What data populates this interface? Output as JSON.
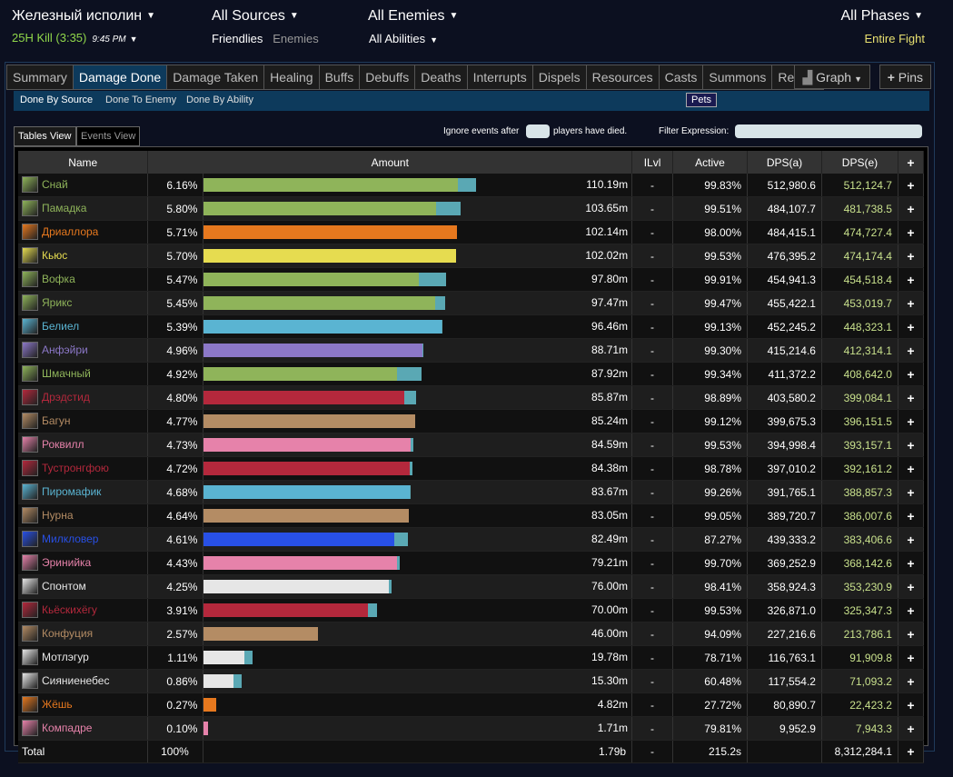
{
  "header": {
    "boss": "Железный исполин",
    "kill_text": "25H Kill (3:35)",
    "kill_time": "9:45 PM",
    "sources": "All Sources",
    "friendlies": "Friendlies",
    "enemies_toggle": "Enemies",
    "enemies": "All Enemies",
    "abilities": "All Abilities",
    "phases": "All Phases",
    "fight": "Entire Fight"
  },
  "tabs": [
    "Summary",
    "Damage Done",
    "Damage Taken",
    "Healing",
    "Buffs",
    "Debuffs",
    "Deaths",
    "Interrupts",
    "Dispels",
    "Resources",
    "Casts",
    "Summons",
    "Replay"
  ],
  "active_tab": "Damage Done",
  "graph_label": "Graph",
  "pins_label": "Pins",
  "subnav": {
    "by_source": "Done By Source",
    "to_enemy": "Done To Enemy",
    "by_ability": "Done By Ability",
    "pets": "Pets"
  },
  "views": {
    "tables": "Tables View",
    "events": "Events View"
  },
  "controls": {
    "ignore_before": "Ignore events after",
    "ignore_after": "players have died.",
    "filter": "Filter Expression:"
  },
  "columns": {
    "name": "Name",
    "amount": "Amount",
    "ilvl": "ILvl",
    "active": "Active",
    "dpsa": "DPS(a)",
    "dpse": "DPS(e)",
    "add": "+"
  },
  "colors": {
    "hunter": "#8fb45a",
    "mage": "#5ab4d2",
    "warrior": "#b48c64",
    "druid": "#e6781e",
    "rogue": "#e6dc50",
    "warlock": "#8c78c8",
    "dk": "#b4283c",
    "paladin": "#e682aa",
    "shaman": "#2850e6",
    "priest": "#e6e6e6",
    "monk": "#e6781e",
    "teal": "#5aa8b4",
    "dpse_text": "#c8e08c"
  },
  "rows": [
    {
      "name": "Снай",
      "cls": "hunter",
      "icon": "hunter-icon",
      "pct": "6.16%",
      "amount": "110.19m",
      "ilvl": "-",
      "active": "99.83%",
      "dpsa": "512,980.6",
      "dpse": "512,124.7",
      "share": 6.16,
      "pet": 0.41
    },
    {
      "name": "Памадка",
      "cls": "hunter",
      "icon": "hunter-icon",
      "pct": "5.80%",
      "amount": "103.65m",
      "ilvl": "-",
      "active": "99.51%",
      "dpsa": "484,107.7",
      "dpse": "481,738.5",
      "share": 5.8,
      "pet": 0.55
    },
    {
      "name": "Дриаллора",
      "cls": "druid",
      "icon": "druid-icon",
      "pct": "5.71%",
      "amount": "102.14m",
      "ilvl": "-",
      "active": "98.00%",
      "dpsa": "484,415.1",
      "dpse": "474,727.4",
      "share": 5.71,
      "pet": 0
    },
    {
      "name": "Кьюс",
      "cls": "rogue",
      "icon": "rogue-icon",
      "pct": "5.70%",
      "amount": "102.02m",
      "ilvl": "-",
      "active": "99.53%",
      "dpsa": "476,395.2",
      "dpse": "474,174.4",
      "share": 5.7,
      "pet": 0
    },
    {
      "name": "Вофка",
      "cls": "hunter",
      "icon": "hunter-icon",
      "pct": "5.47%",
      "amount": "97.80m",
      "ilvl": "-",
      "active": "99.91%",
      "dpsa": "454,941.3",
      "dpse": "454,518.4",
      "share": 5.47,
      "pet": 0.61
    },
    {
      "name": "Ярикс",
      "cls": "hunter",
      "icon": "hunter-icon",
      "pct": "5.45%",
      "amount": "97.47m",
      "ilvl": "-",
      "active": "99.47%",
      "dpsa": "455,422.1",
      "dpse": "453,019.7",
      "share": 5.45,
      "pet": 0.22
    },
    {
      "name": "Белиел",
      "cls": "mage",
      "icon": "frost-mage-icon",
      "pct": "5.39%",
      "amount": "96.46m",
      "ilvl": "-",
      "active": "99.13%",
      "dpsa": "452,245.2",
      "dpse": "448,323.1",
      "share": 5.39,
      "pet": 0.02
    },
    {
      "name": "Анфэйри",
      "cls": "warlock",
      "icon": "warlock-icon",
      "pct": "4.96%",
      "amount": "88.71m",
      "ilvl": "-",
      "active": "99.30%",
      "dpsa": "415,214.6",
      "dpse": "412,314.1",
      "share": 4.96,
      "pet": 0.02
    },
    {
      "name": "Шмачный",
      "cls": "hunter",
      "icon": "hunter-icon",
      "pct": "4.92%",
      "amount": "87.92m",
      "ilvl": "-",
      "active": "99.34%",
      "dpsa": "411,372.2",
      "dpse": "408,642.0",
      "share": 4.92,
      "pet": 0.56
    },
    {
      "name": "Дрэдстид",
      "cls": "dk",
      "icon": "death-knight-icon",
      "pct": "4.80%",
      "amount": "85.87m",
      "ilvl": "-",
      "active": "98.89%",
      "dpsa": "403,580.2",
      "dpse": "399,084.1",
      "share": 4.8,
      "pet": 0.28
    },
    {
      "name": "Багун",
      "cls": "warrior",
      "icon": "warrior-icon",
      "pct": "4.77%",
      "amount": "85.24m",
      "ilvl": "-",
      "active": "99.12%",
      "dpsa": "399,675.3",
      "dpse": "396,151.5",
      "share": 4.77,
      "pet": 0
    },
    {
      "name": "Роквилл",
      "cls": "paladin",
      "icon": "paladin-icon",
      "pct": "4.73%",
      "amount": "84.59m",
      "ilvl": "-",
      "active": "99.53%",
      "dpsa": "394,998.4",
      "dpse": "393,157.1",
      "share": 4.73,
      "pet": 0.06
    },
    {
      "name": "Тустронгфою",
      "cls": "dk",
      "icon": "death-knight-icon",
      "pct": "4.72%",
      "amount": "84.38m",
      "ilvl": "-",
      "active": "98.78%",
      "dpsa": "397,010.2",
      "dpse": "392,161.2",
      "share": 4.72,
      "pet": 0.07
    },
    {
      "name": "Пиромафик",
      "cls": "mage",
      "icon": "fire-mage-icon",
      "pct": "4.68%",
      "amount": "83.67m",
      "ilvl": "-",
      "active": "99.26%",
      "dpsa": "391,765.1",
      "dpse": "388,857.3",
      "share": 4.68,
      "pet": 0.02
    },
    {
      "name": "Нурна",
      "cls": "warrior",
      "icon": "warrior-icon",
      "pct": "4.64%",
      "amount": "83.05m",
      "ilvl": "-",
      "active": "99.05%",
      "dpsa": "389,720.7",
      "dpse": "386,007.6",
      "share": 4.64,
      "pet": 0
    },
    {
      "name": "Милкловер",
      "cls": "shaman",
      "icon": "shaman-icon",
      "pct": "4.61%",
      "amount": "82.49m",
      "ilvl": "-",
      "active": "87.27%",
      "dpsa": "439,333.2",
      "dpse": "383,406.6",
      "share": 4.61,
      "pet": 0.3
    },
    {
      "name": "Эринийка",
      "cls": "paladin",
      "icon": "paladin-icon",
      "pct": "4.43%",
      "amount": "79.21m",
      "ilvl": "-",
      "active": "99.70%",
      "dpsa": "369,252.9",
      "dpse": "368,142.6",
      "share": 4.43,
      "pet": 0.07
    },
    {
      "name": "Спонтом",
      "cls": "priest",
      "icon": "priest-icon",
      "pct": "4.25%",
      "amount": "76.00m",
      "ilvl": "-",
      "active": "98.41%",
      "dpsa": "358,924.3",
      "dpse": "353,230.9",
      "share": 4.25,
      "pet": 0.06
    },
    {
      "name": "Кьёскихёгу",
      "cls": "dk",
      "icon": "death-knight-icon",
      "pct": "3.91%",
      "amount": "70.00m",
      "ilvl": "-",
      "active": "99.53%",
      "dpsa": "326,871.0",
      "dpse": "325,347.3",
      "share": 3.91,
      "pet": 0.21
    },
    {
      "name": "Конфуция",
      "cls": "warrior",
      "icon": "warrior-icon",
      "pct": "2.57%",
      "amount": "46.00m",
      "ilvl": "-",
      "active": "94.09%",
      "dpsa": "227,216.6",
      "dpse": "213,786.1",
      "share": 2.57,
      "pet": 0
    },
    {
      "name": "Мотлэгур",
      "cls": "priest",
      "icon": "priest-icon",
      "pct": "1.11%",
      "amount": "19.78m",
      "ilvl": "-",
      "active": "78.71%",
      "dpsa": "116,763.1",
      "dpse": "91,909.8",
      "share": 1.11,
      "pet": 0.19
    },
    {
      "name": "Сияниенебес",
      "cls": "priest",
      "icon": "holy-priest-icon",
      "pct": "0.86%",
      "amount": "15.30m",
      "ilvl": "-",
      "active": "60.48%",
      "dpsa": "117,554.2",
      "dpse": "71,093.2",
      "share": 0.86,
      "pet": 0.2
    },
    {
      "name": "Жёшь",
      "cls": "monk",
      "icon": "druid-resto-icon",
      "pct": "0.27%",
      "amount": "4.82m",
      "ilvl": "-",
      "active": "27.72%",
      "dpsa": "80,890.7",
      "dpse": "22,423.2",
      "share": 0.27,
      "pet": 0
    },
    {
      "name": "Компадре",
      "cls": "paladin",
      "icon": "holy-paladin-icon",
      "pct": "0.10%",
      "amount": "1.71m",
      "ilvl": "-",
      "active": "79.81%",
      "dpsa": "9,952.9",
      "dpse": "7,943.3",
      "share": 0.1,
      "pet": 0
    }
  ],
  "total": {
    "name": "Total",
    "pct": "100%",
    "amount": "1.79b",
    "ilvl": "-",
    "active": "215.2s",
    "dpse": "8,312,284.1"
  }
}
